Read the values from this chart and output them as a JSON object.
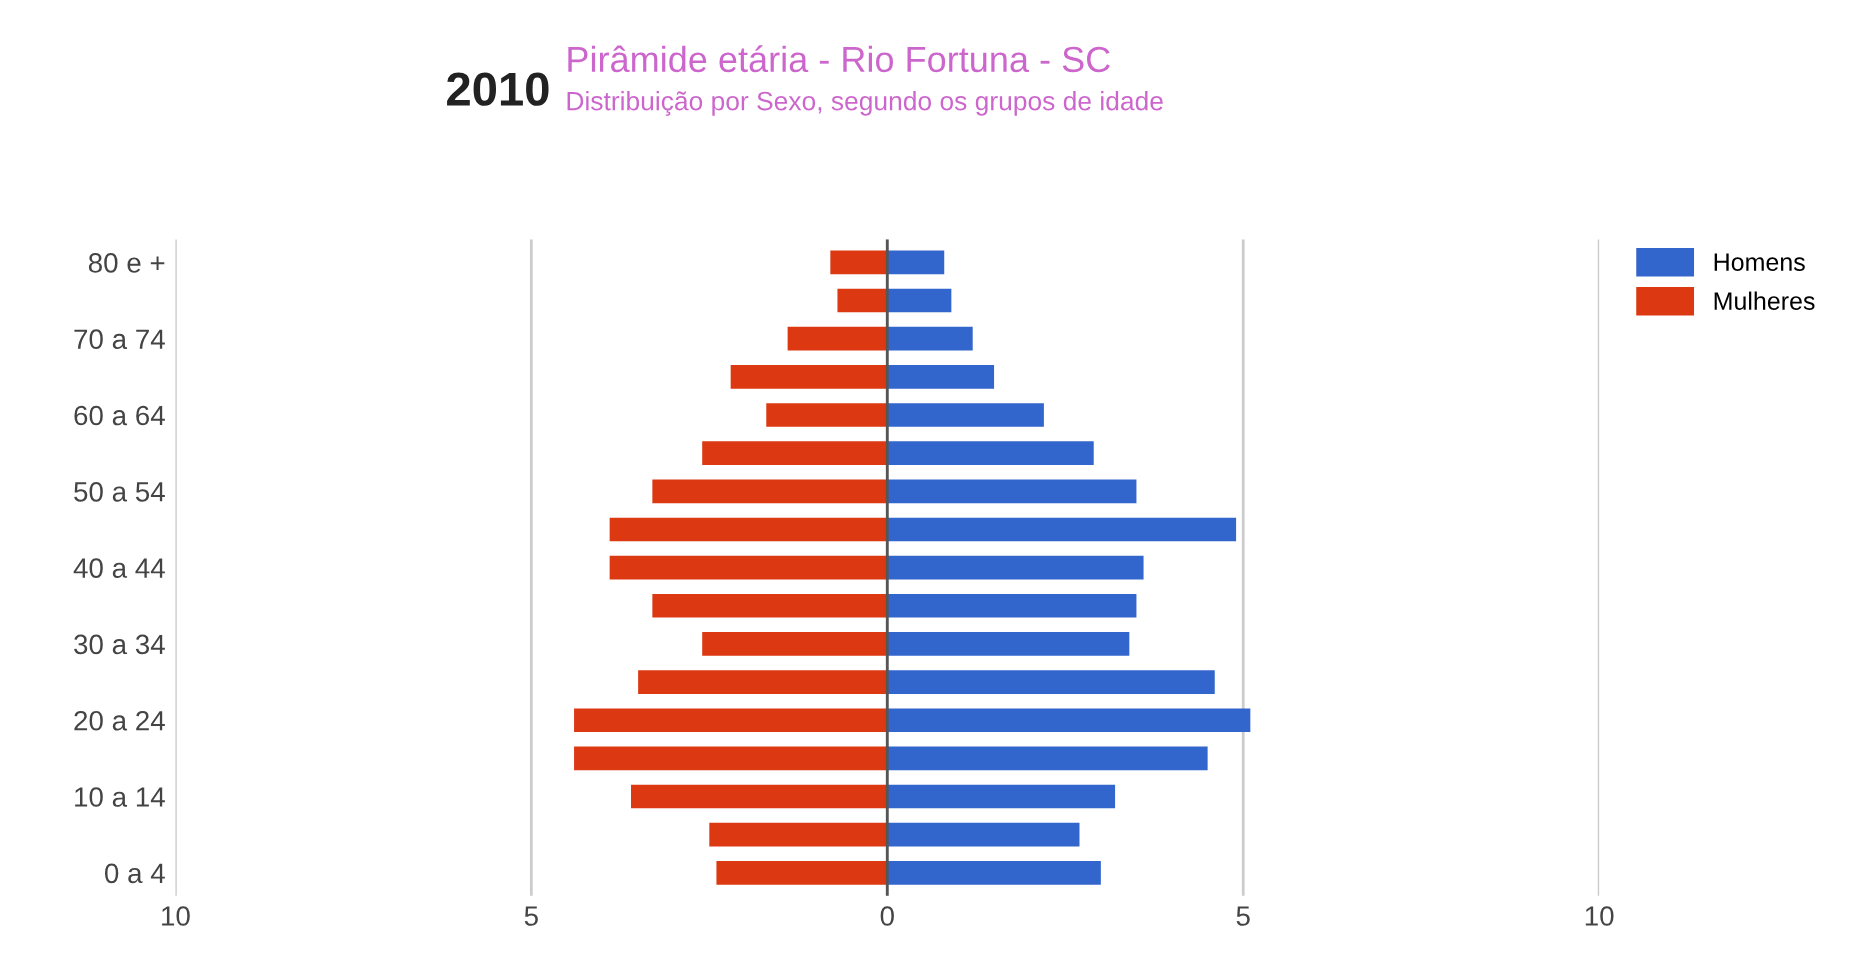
{
  "chart_data": {
    "type": "bar",
    "orientation": "horizontal",
    "stacked": true,
    "title": "Pirâmide etária - Rio Fortuna - SC",
    "subtitle": "Distribuição por Sexo, segundo os grupos de idade",
    "annotations": [
      "2010"
    ],
    "categories": [
      "80 e +",
      null,
      "70 a 74",
      null,
      "60 a 64",
      null,
      "50 a 54",
      null,
      "40 a 44",
      null,
      "30 a 34",
      null,
      "20 a 24",
      null,
      "10 a 14",
      null,
      "0 a 4"
    ],
    "series": [
      {
        "name": "Homens",
        "color": "#3366cc",
        "values": [
          0.8,
          0.9,
          1.2,
          1.5,
          2.2,
          2.9,
          3.5,
          4.9,
          3.6,
          3.5,
          3.4,
          4.6,
          5.1,
          4.5,
          3.2,
          2.7,
          3.0
        ]
      },
      {
        "name": "Mulheres",
        "color": "#dc3912",
        "values": [
          -0.8,
          -0.7,
          -1.4,
          -2.2,
          -1.7,
          -2.6,
          -3.3,
          -3.9,
          -3.9,
          -3.3,
          -2.6,
          -3.5,
          -4.4,
          -4.4,
          -3.6,
          -2.5,
          -2.4
        ]
      }
    ],
    "xlim": [
      -10,
      10
    ],
    "xticks": [
      {
        "value": -10,
        "label": "10"
      },
      {
        "value": -5,
        "label": "5"
      },
      0,
      5,
      10
    ],
    "grid": "x",
    "legend": "top right"
  }
}
